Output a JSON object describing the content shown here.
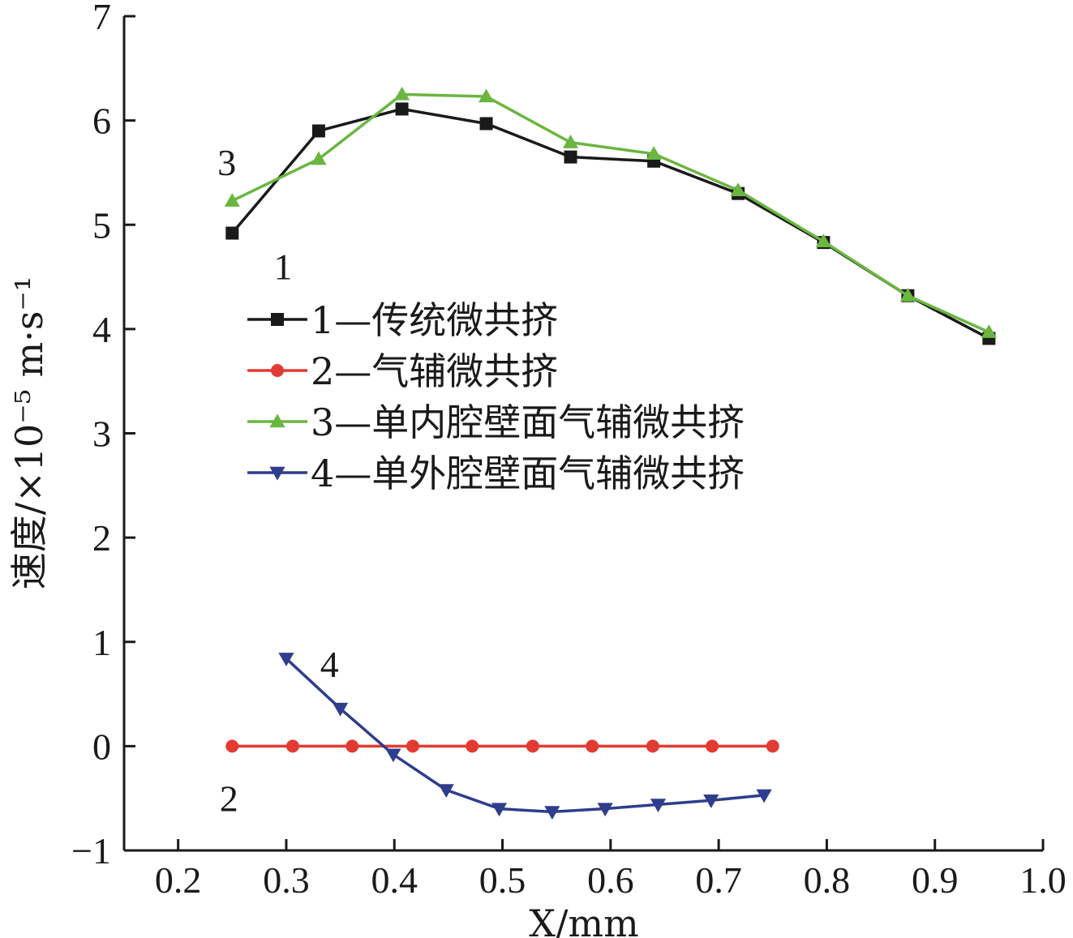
{
  "chart_data": {
    "type": "line",
    "xlabel": "X/mm",
    "ylabel": "速度/×10⁻⁵ m·s⁻¹",
    "xlim": [
      0.15,
      1.0
    ],
    "ylim": [
      -1,
      7
    ],
    "x_ticks": [
      "0.2",
      "0.3",
      "0.4",
      "0.5",
      "0.6",
      "0.7",
      "0.8",
      "0.9",
      "1.0"
    ],
    "y_ticks": [
      "−1",
      "0",
      "1",
      "2",
      "3",
      "4",
      "5",
      "6",
      "7"
    ],
    "legend_position": "center-left",
    "series": [
      {
        "name": "1—传统微共挤",
        "label": "1",
        "color": "#1a1a1a",
        "marker": "square",
        "points": [
          [
            0.25,
            4.92
          ],
          [
            0.33,
            5.9
          ],
          [
            0.407,
            6.11
          ],
          [
            0.485,
            5.97
          ],
          [
            0.563,
            5.65
          ],
          [
            0.64,
            5.61
          ],
          [
            0.718,
            5.3
          ],
          [
            0.797,
            4.83
          ],
          [
            0.875,
            4.32
          ],
          [
            0.95,
            3.91
          ]
        ]
      },
      {
        "name": "2—气辅微共挤",
        "label": "2",
        "color": "#e23b33",
        "marker": "circle",
        "points": [
          [
            0.25,
            0.0
          ],
          [
            0.306,
            0.0
          ],
          [
            0.361,
            0.0
          ],
          [
            0.417,
            0.0
          ],
          [
            0.472,
            0.0
          ],
          [
            0.528,
            0.0
          ],
          [
            0.583,
            0.0
          ],
          [
            0.639,
            0.0
          ],
          [
            0.694,
            0.0
          ],
          [
            0.75,
            0.0
          ]
        ]
      },
      {
        "name": "3—单内腔壁面气辅微共挤",
        "label": "3",
        "color": "#6ab640",
        "marker": "triangle-up",
        "points": [
          [
            0.25,
            5.23
          ],
          [
            0.33,
            5.63
          ],
          [
            0.407,
            6.25
          ],
          [
            0.485,
            6.23
          ],
          [
            0.563,
            5.79
          ],
          [
            0.64,
            5.68
          ],
          [
            0.718,
            5.33
          ],
          [
            0.797,
            4.84
          ],
          [
            0.875,
            4.32
          ],
          [
            0.95,
            3.97
          ]
        ]
      },
      {
        "name": "4—单外腔壁面气辅微共挤",
        "label": "4",
        "color": "#2e3d8c",
        "marker": "triangle-down",
        "points": [
          [
            0.3,
            0.84
          ],
          [
            0.35,
            0.36
          ],
          [
            0.399,
            -0.08
          ],
          [
            0.448,
            -0.42
          ],
          [
            0.497,
            -0.6
          ],
          [
            0.546,
            -0.63
          ],
          [
            0.595,
            -0.6
          ],
          [
            0.644,
            -0.56
          ],
          [
            0.693,
            -0.52
          ],
          [
            0.742,
            -0.47
          ]
        ]
      }
    ]
  }
}
